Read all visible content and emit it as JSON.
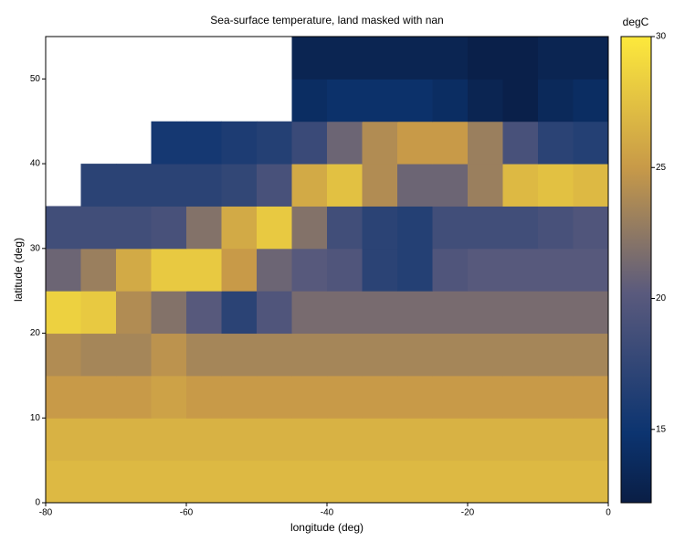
{
  "chart_data": {
    "type": "heatmap",
    "title": "Sea-surface temperature, land masked with nan",
    "xlabel": "longitude (deg)",
    "ylabel": "latitude (deg)",
    "colorbar_label": "degC",
    "xlim": [
      -80,
      0
    ],
    "xticks": [
      -80,
      -60,
      -40,
      -20,
      0
    ],
    "ylim": [
      0,
      55
    ],
    "yticks": [
      0,
      10,
      20,
      30,
      40,
      50
    ],
    "zlim": [
      12.2,
      30
    ],
    "zticks": [
      15,
      20,
      25,
      30
    ],
    "colorscale": [
      [
        0,
        "#0a1e45"
      ],
      [
        0.15,
        "#0c3470"
      ],
      [
        0.45,
        "#5a5a7d"
      ],
      [
        0.72,
        "#c89a48"
      ],
      [
        1,
        "#fde93c"
      ]
    ],
    "x": [
      -77.5,
      -72.5,
      -67.5,
      -62.5,
      -57.5,
      -52.5,
      -47.5,
      -42.5,
      -37.5,
      -32.5,
      -27.5,
      -22.5,
      -17.5,
      -12.5,
      -7.5,
      -2.5
    ],
    "y": [
      2.5,
      7.5,
      12.5,
      17.5,
      22.5,
      27.5,
      32.5,
      37.5,
      42.5,
      47.5,
      52.5
    ],
    "z": [
      [
        27,
        27,
        27,
        27,
        27,
        27,
        27,
        27,
        27,
        27,
        27,
        27,
        27,
        27,
        27,
        27
      ],
      [
        26.5,
        26.5,
        26.5,
        26.5,
        26.5,
        26.5,
        26.5,
        26.5,
        26.5,
        26.5,
        26.5,
        26.5,
        26.5,
        26.5,
        26.5,
        26.5
      ],
      [
        25,
        25,
        25,
        25.5,
        25,
        25,
        25,
        25,
        25,
        25,
        25,
        25,
        25,
        25,
        25,
        25
      ],
      [
        24,
        23.5,
        23.5,
        24.5,
        23.5,
        23.5,
        23.5,
        23.5,
        23.5,
        23.5,
        23.5,
        23.5,
        23.5,
        23.5,
        23.5,
        23.5
      ],
      [
        28.5,
        28,
        24,
        22,
        20,
        17,
        19.5,
        21.5,
        21.5,
        21.5,
        21.5,
        21.5,
        21.5,
        21.5,
        21.5,
        21.5
      ],
      [
        21,
        23,
        26,
        28,
        28,
        25,
        21,
        20,
        19.5,
        17,
        16.5,
        19.5,
        20,
        20,
        20,
        20
      ],
      [
        18.5,
        18.5,
        18.5,
        19,
        22,
        26,
        28,
        22,
        18.5,
        17,
        16.5,
        18.5,
        18.5,
        18.5,
        19,
        19.5
      ],
      [
        null,
        17,
        17,
        17,
        17,
        17.5,
        19,
        26,
        27.5,
        24,
        21,
        21,
        23,
        27,
        27.5,
        27
      ],
      [
        null,
        null,
        null,
        15.5,
        15.5,
        16,
        16.5,
        18,
        21,
        24,
        25,
        25,
        23,
        19,
        17,
        16.5
      ],
      [
        null,
        null,
        null,
        null,
        null,
        null,
        null,
        14,
        14.5,
        14.5,
        14.5,
        14,
        13,
        12.5,
        13.5,
        14
      ],
      [
        null,
        null,
        null,
        null,
        null,
        null,
        null,
        13,
        13,
        13,
        13,
        13,
        12.5,
        12.5,
        13,
        13
      ]
    ]
  }
}
